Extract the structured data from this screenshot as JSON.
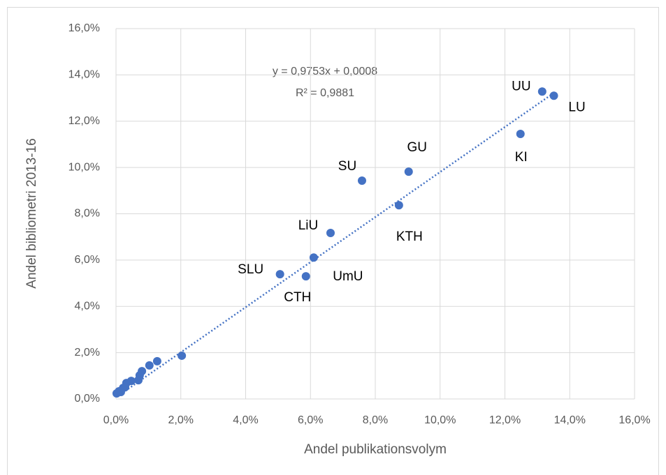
{
  "chart_data": {
    "type": "scatter",
    "x_label": "Andel publikationsvolym",
    "y_label": "Andel bibliometri 2013-16",
    "color": "#4472c4",
    "grid": true,
    "xlim": [
      0,
      16
    ],
    "ylim": [
      0,
      16
    ],
    "xticks": [
      {
        "value": 0,
        "label": "0,0%"
      },
      {
        "value": 2,
        "label": "2,0%"
      },
      {
        "value": 4,
        "label": "4,0%"
      },
      {
        "value": 6,
        "label": "6,0%"
      },
      {
        "value": 8,
        "label": "8,0%"
      },
      {
        "value": 10,
        "label": "10,0%"
      },
      {
        "value": 12,
        "label": "12,0%"
      },
      {
        "value": 14,
        "label": "14,0%"
      },
      {
        "value": 16,
        "label": "16,0%"
      }
    ],
    "yticks": [
      {
        "value": 0,
        "label": "0,0%"
      },
      {
        "value": 2,
        "label": "2,0%"
      },
      {
        "value": 4,
        "label": "4,0%"
      },
      {
        "value": 6,
        "label": "6,0%"
      },
      {
        "value": 8,
        "label": "8,0%"
      },
      {
        "value": 10,
        "label": "10,0%"
      },
      {
        "value": 12,
        "label": "12,0%"
      },
      {
        "value": 14,
        "label": "14,0%"
      },
      {
        "value": 16,
        "label": "16,0%"
      }
    ],
    "x": [
      13.15,
      13.51,
      12.48,
      9.03,
      7.59,
      8.73,
      6.62,
      6.1,
      5.06,
      5.86,
      2.03,
      1.27,
      1.03,
      0.8,
      0.73,
      0.69,
      0.47,
      0.32,
      0.28,
      0.22,
      0.15,
      0.09,
      0.02
    ],
    "y": [
      13.28,
      13.1,
      11.45,
      9.82,
      9.43,
      8.37,
      7.17,
      6.11,
      5.39,
      5.3,
      1.87,
      1.63,
      1.45,
      1.2,
      1.02,
      0.81,
      0.78,
      0.69,
      0.51,
      0.48,
      0.3,
      0.33,
      0.24
    ],
    "point_labels": [
      "UU",
      "LU",
      "KI",
      "GU",
      "SU",
      "KTH",
      "LiU",
      "UmU",
      "SLU",
      "CTH",
      null,
      null,
      null,
      null,
      null,
      null,
      null,
      null,
      null,
      null,
      null,
      null,
      null
    ],
    "trendline": {
      "equation": "y = 0,9753x + 0,0008",
      "r_squared": "R² = 0,9881",
      "x": [
        0.02,
        13.51
      ],
      "y": [
        0.09,
        13.22
      ]
    }
  }
}
